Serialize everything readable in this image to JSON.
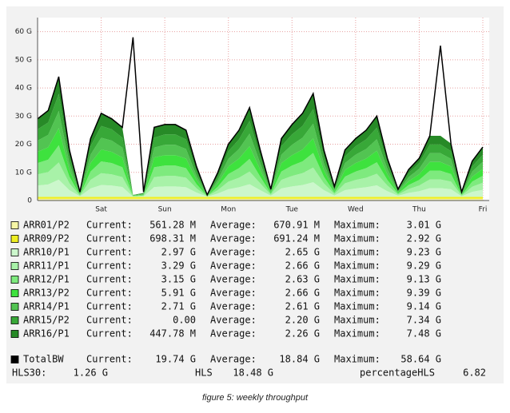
{
  "chart_data": {
    "type": "area",
    "categories": [
      null,
      null,
      null,
      null,
      null,
      null,
      "Sat",
      null,
      null,
      null,
      null,
      null,
      "Sun",
      null,
      null,
      null,
      null,
      null,
      "Mon",
      null,
      null,
      null,
      null,
      null,
      "Tue",
      null,
      null,
      null,
      null,
      null,
      "Wed",
      null,
      null,
      null,
      null,
      null,
      "Thu",
      null,
      null,
      null,
      null,
      null,
      "Fri"
    ],
    "ylim": [
      0,
      65
    ],
    "yticks": [
      0,
      {
        "value": 10,
        "label": "10 G"
      },
      {
        "value": 20,
        "label": "20 G"
      },
      {
        "value": 30,
        "label": "30 G"
      },
      {
        "value": 40,
        "label": "40 G"
      },
      {
        "value": 50,
        "label": "50 G"
      },
      {
        "value": 60,
        "label": "60 G"
      }
    ],
    "grid": true,
    "stat_labels": [
      "Current:",
      "Average:",
      "Maximum:"
    ],
    "series": [
      {
        "name": "ARR01/P2",
        "color": "#f6f6a6",
        "current": "561.28 M",
        "average": "670.91 M",
        "maximum": "3.01 G",
        "values": [
          0.6,
          0.6,
          0.6,
          0.6,
          0.6,
          0.6,
          0.6,
          0.6,
          0.6,
          0.6,
          0.6,
          0.6,
          0.6,
          0.6,
          0.6,
          0.6,
          0.6,
          0.6,
          0.6,
          0.6,
          0.6,
          0.6,
          0.6,
          0.6,
          0.6,
          0.6,
          0.6,
          0.6,
          0.6,
          0.6,
          0.6,
          0.6,
          0.6,
          0.6,
          0.6,
          0.6,
          0.6,
          0.6,
          0.6,
          0.6,
          0.6,
          0.6,
          0.6
        ]
      },
      {
        "name": "ARR09/P2",
        "color": "#eeee22",
        "current": "698.31 M",
        "average": "691.24 M",
        "maximum": "2.92 G",
        "values": [
          0.7,
          0.7,
          0.7,
          0.7,
          0.7,
          0.7,
          0.7,
          0.7,
          0.7,
          0.7,
          0.7,
          0.7,
          0.7,
          0.7,
          0.7,
          0.7,
          0.7,
          0.7,
          0.7,
          0.7,
          0.7,
          0.7,
          0.7,
          0.7,
          0.7,
          0.7,
          0.7,
          0.7,
          0.7,
          0.7,
          0.7,
          0.7,
          0.7,
          0.7,
          0.7,
          0.7,
          0.7,
          0.7,
          0.7,
          0.7,
          0.7,
          0.7,
          0.7
        ]
      },
      {
        "name": "ARR10/P1",
        "color": "#ccf7cc",
        "current": "2.97 G",
        "average": "2.65 G",
        "maximum": "9.23 G",
        "values": [
          4.0,
          4.4,
          6.1,
          2.4,
          0.2,
          3.0,
          4.2,
          4.0,
          3.5,
          0.1,
          0.2,
          3.5,
          3.7,
          3.7,
          3.4,
          1.5,
          0.1,
          1.2,
          2.7,
          3.4,
          4.5,
          2.4,
          0.4,
          3.0,
          3.7,
          4.2,
          5.2,
          2.4,
          0.5,
          2.4,
          3.0,
          3.4,
          4.1,
          2.0,
          0.4,
          1.4,
          2.0,
          3.1,
          3.1,
          2.7,
          0.2,
          1.8,
          2.5
        ]
      },
      {
        "name": "ARR11/P1",
        "color": "#a8f2a8",
        "current": "3.29 G",
        "average": "2.66 G",
        "maximum": "9.29 G",
        "values": [
          4.0,
          4.4,
          6.1,
          2.4,
          0.2,
          3.0,
          4.2,
          4.0,
          3.5,
          0.1,
          0.2,
          3.5,
          3.7,
          3.7,
          3.4,
          1.5,
          0.1,
          1.2,
          2.7,
          3.4,
          4.5,
          2.4,
          0.4,
          3.0,
          3.7,
          4.2,
          5.2,
          2.4,
          0.5,
          2.4,
          3.0,
          3.4,
          4.1,
          2.0,
          0.4,
          1.4,
          2.0,
          3.1,
          3.1,
          2.7,
          0.2,
          1.8,
          2.5
        ]
      },
      {
        "name": "ARR12/P1",
        "color": "#7eea7e",
        "current": "3.15 G",
        "average": "2.63 G",
        "maximum": "9.13 G",
        "values": [
          4.0,
          4.4,
          6.1,
          2.4,
          0.2,
          3.0,
          4.2,
          4.0,
          3.5,
          0.1,
          0.2,
          3.5,
          3.7,
          3.7,
          3.4,
          1.5,
          0.1,
          1.2,
          2.7,
          3.4,
          4.5,
          2.4,
          0.4,
          3.0,
          3.7,
          4.2,
          5.2,
          2.4,
          0.5,
          2.4,
          3.0,
          3.4,
          4.1,
          2.0,
          0.4,
          1.4,
          2.0,
          3.1,
          3.1,
          2.7,
          0.2,
          1.8,
          2.5
        ]
      },
      {
        "name": "ARR13/P2",
        "color": "#3ee23e",
        "current": "5.91 G",
        "average": "2.66 G",
        "maximum": "9.39 G",
        "values": [
          4.0,
          4.4,
          6.1,
          2.4,
          0.2,
          3.0,
          4.2,
          4.0,
          3.5,
          0.1,
          0.2,
          3.5,
          3.7,
          3.7,
          3.4,
          1.5,
          0.1,
          1.2,
          2.7,
          3.4,
          4.5,
          2.4,
          0.4,
          3.0,
          3.7,
          4.2,
          5.2,
          2.4,
          0.5,
          2.4,
          3.0,
          3.4,
          4.1,
          2.0,
          0.4,
          1.4,
          2.0,
          3.1,
          3.1,
          2.7,
          0.2,
          1.8,
          2.5
        ]
      },
      {
        "name": "ARR14/P1",
        "color": "#52c452",
        "current": "2.71 G",
        "average": "2.61 G",
        "maximum": "9.14 G",
        "values": [
          4.0,
          4.4,
          6.1,
          2.4,
          0.2,
          3.0,
          4.2,
          4.0,
          3.5,
          0.1,
          0.2,
          3.5,
          3.7,
          3.7,
          3.4,
          1.5,
          0.1,
          1.2,
          2.7,
          3.4,
          4.5,
          2.4,
          0.4,
          3.0,
          3.7,
          4.2,
          5.2,
          2.4,
          0.5,
          2.4,
          3.0,
          3.4,
          4.1,
          2.0,
          0.4,
          1.4,
          2.0,
          3.1,
          3.1,
          2.7,
          0.2,
          1.8,
          2.5
        ]
      },
      {
        "name": "ARR15/P2",
        "color": "#38a838",
        "current": "0.00",
        "average": "2.20 G",
        "maximum": "7.34 G",
        "values": [
          4.0,
          4.4,
          6.1,
          2.4,
          0.2,
          3.0,
          4.2,
          4.0,
          3.5,
          0.1,
          0.2,
          3.5,
          3.7,
          3.7,
          3.4,
          1.5,
          0.1,
          1.2,
          2.7,
          3.4,
          4.5,
          2.4,
          0.4,
          3.0,
          3.7,
          4.2,
          5.2,
          2.4,
          0.5,
          2.4,
          3.0,
          3.4,
          4.1,
          2.0,
          0.4,
          1.4,
          2.0,
          3.1,
          3.1,
          2.7,
          0.2,
          1.8,
          2.5
        ]
      },
      {
        "name": "ARR16/P1",
        "color": "#278a27",
        "current": "447.78 M",
        "average": "2.26 G",
        "maximum": "7.48 G",
        "values": [
          4.0,
          4.4,
          6.1,
          2.4,
          0.2,
          3.0,
          4.2,
          4.0,
          3.5,
          0.1,
          0.2,
          3.5,
          3.7,
          3.7,
          3.4,
          1.5,
          0.1,
          1.2,
          2.7,
          3.4,
          4.5,
          2.4,
          0.4,
          3.0,
          3.7,
          4.2,
          5.2,
          2.4,
          0.5,
          2.4,
          3.0,
          3.4,
          4.1,
          2.0,
          0.4,
          1.4,
          2.0,
          3.1,
          3.1,
          2.7,
          0.2,
          1.8,
          2.5
        ]
      },
      {
        "name": "TotalBW",
        "color": "#000000",
        "type": "line",
        "current": "19.74 G",
        "average": "18.84 G",
        "maximum": "58.64 G",
        "values": [
          29,
          32,
          44,
          18,
          3,
          22,
          31,
          29,
          26,
          58,
          3,
          26,
          27,
          27,
          25,
          12,
          2,
          10,
          20,
          25,
          33,
          18,
          4,
          22,
          27,
          31,
          38,
          18,
          5,
          18,
          22,
          25,
          30,
          15,
          4,
          11,
          15,
          23,
          55,
          20,
          3,
          14,
          19
        ]
      }
    ]
  },
  "footer": {
    "hls30_label": "HLS30:",
    "hls30_value": "1.26 G",
    "hls_label": "HLS",
    "hls_value": "18.48 G",
    "pct_label": "percentageHLS",
    "pct_value": "6.82"
  },
  "caption": "figure 5: weekly throughput"
}
